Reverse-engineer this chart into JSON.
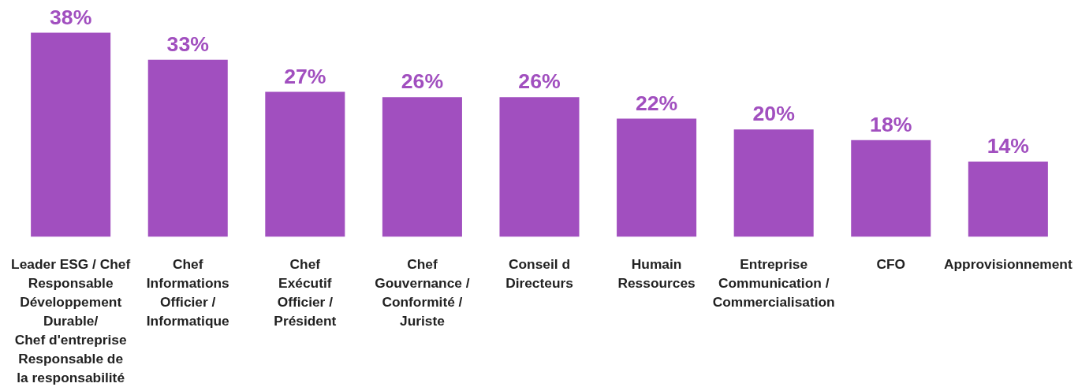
{
  "chart_data": {
    "type": "bar",
    "categories": [
      "Leader ESG / Chef\nResponsable\nDéveloppement\nDurable/\nChef d'entreprise\nResponsable de\nla responsabilité",
      "Chef\nInformations\nOfficier /\nInformatique",
      "Chef\nExécutif\nOfficier /\nPrésident",
      "Chef\nGouvernance /\nConformité /\nJuriste",
      "Conseil d\nDirecteurs",
      "Humain\nRessources",
      "Entreprise\nCommunication /\nCommercialisation",
      "CFO",
      "Approvisionnement"
    ],
    "values": [
      38,
      33,
      27,
      26,
      26,
      22,
      20,
      18,
      14
    ],
    "value_labels": [
      "38%",
      "33%",
      "27%",
      "26%",
      "26%",
      "22%",
      "20%",
      "18%",
      "14%"
    ],
    "color": "#a14fbf"
  }
}
